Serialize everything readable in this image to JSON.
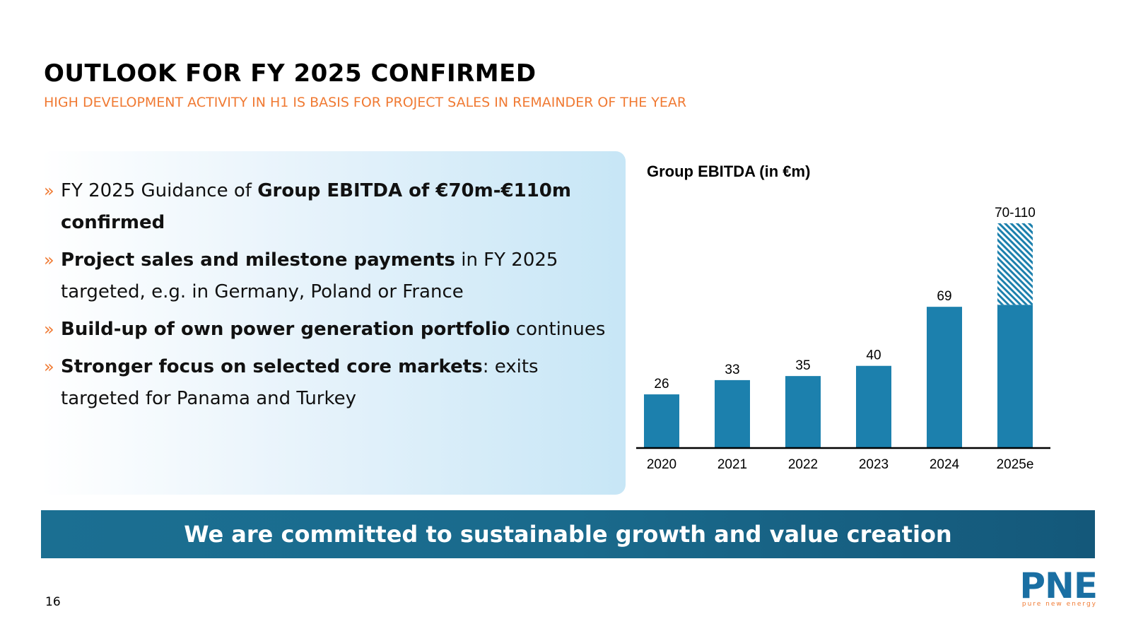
{
  "header": {
    "title": "OUTLOOK FOR FY 2025 CONFIRMED",
    "subtitle": "HIGH DEVELOPMENT ACTIVITY IN H1 IS BASIS FOR PROJECT SALES IN REMAINDER OF THE YEAR"
  },
  "bullets": [
    {
      "pre": "FY 2025 Guidance of ",
      "bold": "Group EBITDA of €70m-€110m confirmed",
      "post": ""
    },
    {
      "pre": "",
      "bold": "Project sales and milestone payments",
      "post": " in FY 2025 targeted, e.g. in Germany, Poland or France"
    },
    {
      "pre": "",
      "bold": "Build-up of own power generation portfolio",
      "post": " continues"
    },
    {
      "pre": "",
      "bold": "Stronger focus on selected core markets",
      "post": ": exits targeted for Panama and Turkey"
    }
  ],
  "bullet_marker": "»",
  "chart_data": {
    "type": "bar",
    "title": "Group EBITDA (in €m)",
    "categories": [
      "2020",
      "2021",
      "2022",
      "2023",
      "2024",
      "2025e"
    ],
    "values": [
      26,
      33,
      35,
      40,
      69,
      70
    ],
    "range_top": {
      "category": "2025e",
      "low": 70,
      "high": 110,
      "label": "70-110"
    },
    "labels": [
      "26",
      "33",
      "35",
      "40",
      "69",
      "70-110"
    ],
    "ylim": [
      0,
      110
    ],
    "xlabel": "",
    "ylabel": "",
    "grid": false,
    "colors": {
      "bar": "#1c80ad",
      "hatch": "#1c80ad",
      "axis": "#000000"
    }
  },
  "banner": {
    "text": "We are committed to sustainable growth and value creation"
  },
  "footer": {
    "page_number": "16"
  },
  "logo": {
    "brand": "PNE",
    "tagline": "pure new energy"
  }
}
